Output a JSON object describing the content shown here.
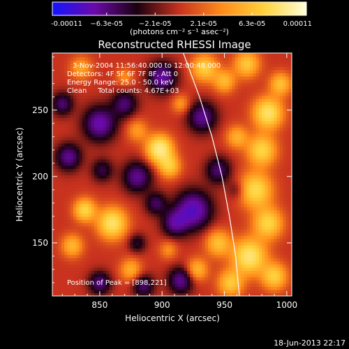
{
  "colorbar": {
    "tick_labels": [
      "-0.00011",
      "−6.3e-05",
      "−2.1e-05",
      "2.1e-05",
      "6.3e-05",
      "0.00011"
    ],
    "tick_values": [
      -0.00011,
      -6.3e-05,
      -2.1e-05,
      2.1e-05,
      6.3e-05,
      0.00011
    ],
    "range": [
      -0.00011,
      0.00011
    ],
    "units_label": "(photons cm⁻² s⁻¹ asec⁻²)",
    "colormap_stops": [
      "#1414ff",
      "#6b0aa8",
      "#1a0010",
      "#c8321e",
      "#ff8c1a",
      "#ffd23c",
      "#ffffd8"
    ]
  },
  "chart_data": {
    "type": "heatmap",
    "title": "Reconstructed RHESSI Image",
    "xlabel": "Heliocentric X (arcsec)",
    "ylabel": "Heliocentric Y (arcsec)",
    "xlim": [
      812,
      1004
    ],
    "ylim": [
      110,
      293
    ],
    "x_ticks": [
      850,
      900,
      950,
      1000
    ],
    "y_ticks": [
      150,
      200,
      250
    ],
    "x_tick_labels": [
      "850",
      "900",
      "950",
      "1000"
    ],
    "y_tick_labels": [
      "150",
      "200",
      "250"
    ],
    "annotations": {
      "time_range": "3-Nov-2004 11:56:40.000 to 12:00:48.000",
      "detectors": "Detectors: 4F 5F 6F 7F 8F, Att 0",
      "energy": "Energy Range: 25.0 - 50.0 keV",
      "clean": "Clean     Total counts: 4.67E+03",
      "peak": "Position of Peak = [898,221]"
    },
    "peak_position": [
      898,
      221
    ],
    "limb_curve": [
      [
        917,
        293
      ],
      [
        930,
        260
      ],
      [
        940,
        230
      ],
      [
        948,
        200
      ],
      [
        954,
        170
      ],
      [
        959,
        140
      ],
      [
        962,
        110
      ]
    ],
    "blobs": [
      {
        "x": 898,
        "y": 221,
        "v": 1.0,
        "s": 7
      },
      {
        "x": 906,
        "y": 208,
        "v": 0.6,
        "s": 6
      },
      {
        "x": 934,
        "y": 282,
        "v": 0.65,
        "s": 7
      },
      {
        "x": 950,
        "y": 272,
        "v": 0.5,
        "s": 6
      },
      {
        "x": 968,
        "y": 285,
        "v": 0.6,
        "s": 7
      },
      {
        "x": 985,
        "y": 248,
        "v": 0.85,
        "s": 8
      },
      {
        "x": 995,
        "y": 270,
        "v": 0.55,
        "s": 6
      },
      {
        "x": 980,
        "y": 220,
        "v": 0.7,
        "s": 8
      },
      {
        "x": 975,
        "y": 190,
        "v": 0.75,
        "s": 9
      },
      {
        "x": 985,
        "y": 165,
        "v": 0.7,
        "s": 8
      },
      {
        "x": 970,
        "y": 140,
        "v": 0.9,
        "s": 9
      },
      {
        "x": 990,
        "y": 125,
        "v": 0.65,
        "s": 7
      },
      {
        "x": 945,
        "y": 150,
        "v": 0.55,
        "s": 7
      },
      {
        "x": 955,
        "y": 120,
        "v": 0.6,
        "s": 7
      },
      {
        "x": 928,
        "y": 130,
        "v": 0.5,
        "s": 6
      },
      {
        "x": 860,
        "y": 165,
        "v": 0.85,
        "s": 8
      },
      {
        "x": 838,
        "y": 175,
        "v": 0.7,
        "s": 6
      },
      {
        "x": 828,
        "y": 148,
        "v": 0.5,
        "s": 6
      },
      {
        "x": 875,
        "y": 130,
        "v": 0.45,
        "s": 6
      },
      {
        "x": 880,
        "y": 235,
        "v": 0.35,
        "s": 6
      },
      {
        "x": 835,
        "y": 282,
        "v": 0.4,
        "s": 6
      },
      {
        "x": 870,
        "y": 275,
        "v": 0.3,
        "s": 5
      },
      {
        "x": 915,
        "y": 255,
        "v": 0.35,
        "s": 5
      },
      {
        "x": 960,
        "y": 230,
        "v": 0.45,
        "s": 6
      },
      {
        "x": 905,
        "y": 145,
        "v": 0.3,
        "s": 5
      },
      {
        "x": 850,
        "y": 240,
        "v": -0.7,
        "s": 9
      },
      {
        "x": 825,
        "y": 215,
        "v": -0.6,
        "s": 7
      },
      {
        "x": 820,
        "y": 255,
        "v": -0.5,
        "s": 6
      },
      {
        "x": 880,
        "y": 200,
        "v": -0.6,
        "s": 8
      },
      {
        "x": 870,
        "y": 255,
        "v": -0.5,
        "s": 7
      },
      {
        "x": 900,
        "y": 275,
        "v": -0.65,
        "s": 8
      },
      {
        "x": 932,
        "y": 245,
        "v": -0.6,
        "s": 8
      },
      {
        "x": 925,
        "y": 175,
        "v": -0.8,
        "s": 10
      },
      {
        "x": 945,
        "y": 205,
        "v": -0.5,
        "s": 7
      },
      {
        "x": 910,
        "y": 165,
        "v": -0.55,
        "s": 7
      },
      {
        "x": 895,
        "y": 180,
        "v": -0.45,
        "s": 6
      },
      {
        "x": 852,
        "y": 205,
        "v": -0.4,
        "s": 6
      },
      {
        "x": 915,
        "y": 122,
        "v": -0.6,
        "s": 7
      },
      {
        "x": 885,
        "y": 118,
        "v": -0.5,
        "s": 6
      },
      {
        "x": 850,
        "y": 120,
        "v": -0.55,
        "s": 6
      },
      {
        "x": 880,
        "y": 150,
        "v": -0.35,
        "s": 5
      },
      {
        "x": 960,
        "y": 190,
        "v": -0.25,
        "s": 5
      }
    ]
  },
  "footer": {
    "timestamp": "18-Jun-2013 22:17"
  }
}
